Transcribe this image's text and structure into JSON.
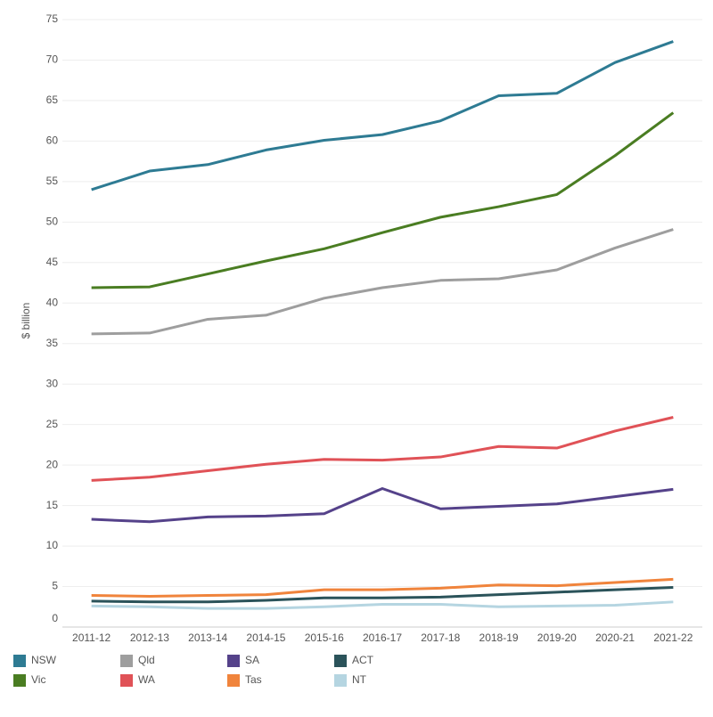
{
  "chart_data": {
    "type": "line",
    "y_label": "$ billion",
    "categories": [
      "2011-12",
      "2012-13",
      "2013-14",
      "2014-15",
      "2015-16",
      "2016-17",
      "2017-18",
      "2018-19",
      "2019-20",
      "2020-21",
      "2021-22"
    ],
    "ylim": [
      0,
      75
    ],
    "yticks": [
      0,
      5,
      10,
      15,
      20,
      25,
      30,
      35,
      40,
      45,
      50,
      55,
      60,
      65,
      70,
      75
    ],
    "grid": true,
    "series": [
      {
        "name": "NSW",
        "color": "#2e7b93",
        "values": [
          54.0,
          56.3,
          57.1,
          58.9,
          60.1,
          60.8,
          62.5,
          65.6,
          65.9,
          69.7,
          72.3
        ]
      },
      {
        "name": "Vic",
        "color": "#4a7d22",
        "values": [
          41.9,
          42.0,
          43.6,
          45.2,
          46.7,
          48.7,
          50.6,
          51.9,
          53.4,
          58.2,
          63.5
        ]
      },
      {
        "name": "Qld",
        "color": "#9e9e9e",
        "values": [
          36.2,
          36.3,
          38.0,
          38.5,
          40.6,
          41.9,
          42.8,
          43.0,
          44.1,
          46.8,
          49.1
        ]
      },
      {
        "name": "WA",
        "color": "#e05257",
        "values": [
          18.1,
          18.5,
          19.3,
          20.1,
          20.7,
          20.6,
          21.0,
          22.3,
          22.1,
          24.2,
          25.9
        ]
      },
      {
        "name": "SA",
        "color": "#55428a",
        "values": [
          13.3,
          13.0,
          13.6,
          13.7,
          14.0,
          17.1,
          14.6,
          14.9,
          15.2,
          16.1,
          17.0
        ]
      },
      {
        "name": "Tas",
        "color": "#f0843c",
        "values": [
          3.9,
          3.8,
          3.9,
          4.0,
          4.6,
          4.6,
          4.8,
          5.2,
          5.1,
          5.5,
          5.9
        ]
      },
      {
        "name": "ACT",
        "color": "#2b535a",
        "values": [
          3.2,
          3.1,
          3.1,
          3.3,
          3.6,
          3.6,
          3.7,
          4.0,
          4.3,
          4.6,
          4.9
        ]
      },
      {
        "name": "NT",
        "color": "#b5d5e1",
        "values": [
          2.6,
          2.5,
          2.3,
          2.3,
          2.5,
          2.8,
          2.8,
          2.5,
          2.6,
          2.7,
          3.1
        ]
      }
    ]
  }
}
